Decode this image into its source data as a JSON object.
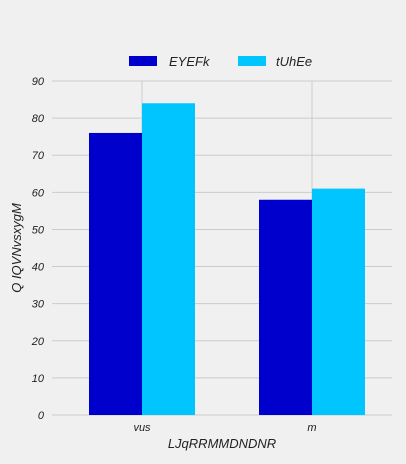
{
  "chart_data": {
    "type": "bar",
    "categories": [
      "vus",
      "m"
    ],
    "series": [
      {
        "name": "EYEFk",
        "values": [
          76,
          58
        ],
        "color": "#0000cd"
      },
      {
        "name": "tUhEe",
        "values": [
          84,
          61
        ],
        "color": "#00c5ff"
      }
    ],
    "xlabel": "LJqRRMMDNDNR",
    "ylabel": "Q IQVNvsxygM",
    "ylim": [
      0,
      90
    ],
    "yticks": [
      0,
      10,
      20,
      30,
      40,
      50,
      60,
      70,
      80,
      90
    ],
    "grid": true,
    "legend_position": "top-center",
    "background": "#f0f0f0"
  }
}
